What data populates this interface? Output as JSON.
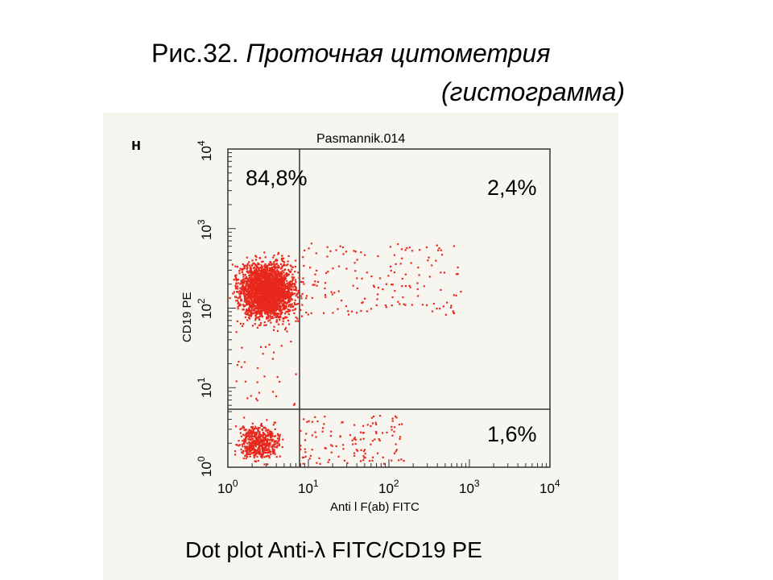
{
  "slide": {
    "figure_number": "Рис.32.",
    "title": "Проточная цитометрия",
    "subtitle": "(гистограмма)"
  },
  "plot": {
    "panel_letter": "н",
    "sample": "Pasmannik.014",
    "quadrants": {
      "upper_left": "84,8%",
      "upper_right": "2,4%",
      "lower_right": "1,6%"
    },
    "y_axis_label": "CD19 PE",
    "x_axis_label": "Anti l F(ab) FITC",
    "ticks": [
      {
        "base": "10",
        "exp": "0"
      },
      {
        "base": "10",
        "exp": "1"
      },
      {
        "base": "10",
        "exp": "2"
      },
      {
        "base": "10",
        "exp": "3"
      },
      {
        "base": "10",
        "exp": "4"
      }
    ],
    "caption": "Dot plot Anti-λ FITC/CD19 PE"
  }
}
